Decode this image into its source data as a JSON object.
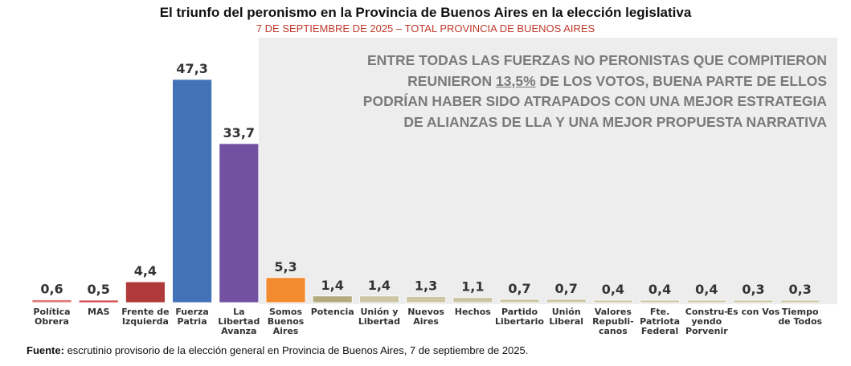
{
  "header": {
    "title": "El triunfo del peronismo en la Provincia de Buenos Aires en la elección legislativa",
    "subtitle": "7 DE SEPTIEMBRE DE 2025 – TOTAL PROVINCIA DE BUENOS AIRES"
  },
  "note": {
    "line1": "ENTRE TODAS LAS FUERZAS NO PERONISTAS QUE COMPITIERON",
    "line2_pre": "REUNIERON ",
    "line2_value": "13,5%",
    "line2_post": " DE LOS VOTOS, BUENA PARTE DE ELLOS",
    "line3": "PODRÍAN HABER SIDO ATRAPADOS CON UNA MEJOR ESTRATEGIA",
    "line4": "DE ALIANZAS DE LLA Y UNA MEJOR PROPUESTA NARRATIVA"
  },
  "source": {
    "label": "Fuente:",
    "text": " escrutinio provisorio de la elección general en Provincia de Buenos Aires, 7 de septiembre de 2025."
  },
  "chart_data": {
    "type": "bar",
    "title": "El triunfo del peronismo en la Provincia de Buenos Aires en la elección legislativa",
    "subtitle": "7 DE SEPTIEMBRE DE 2025 – TOTAL PROVINCIA DE BUENOS AIRES",
    "xlabel": "",
    "ylabel": "",
    "grid": false,
    "decimal_separator": ",",
    "categories": [
      [
        "Política",
        "Obrera"
      ],
      [
        "MAS"
      ],
      [
        "Frente de",
        "Izquierda"
      ],
      [
        "Fuerza",
        "Patria"
      ],
      [
        "La",
        "Libertad",
        "Avanza"
      ],
      [
        "Somos",
        "Buenos",
        "Aires"
      ],
      [
        "Potencia"
      ],
      [
        "Unión y",
        "Libertad"
      ],
      [
        "Nuevos",
        "Aires"
      ],
      [
        "Hechos"
      ],
      [
        "Partido",
        "Libertario"
      ],
      [
        "Unión",
        "Liberal"
      ],
      [
        "Valores",
        "Republi-",
        "canos"
      ],
      [
        "Fte.",
        "Patriota",
        "Federal"
      ],
      [
        "Constru-",
        "yendo",
        "Porvenir"
      ],
      [
        "Es con Vos"
      ],
      [
        "Tiempo",
        "de Todos"
      ]
    ],
    "values": [
      0.6,
      0.5,
      4.4,
      47.3,
      33.7,
      5.3,
      1.4,
      1.4,
      1.3,
      1.1,
      0.7,
      0.7,
      0.4,
      0.4,
      0.4,
      0.3,
      0.3
    ],
    "value_labels": [
      "0,6",
      "0,5",
      "4,4",
      "47,3",
      "33,7",
      "5,3",
      "1,4",
      "1,4",
      "1,3",
      "1,1",
      "0,7",
      "0,7",
      "0,4",
      "0,4",
      "0,4",
      "0,3",
      "0,3"
    ],
    "colors": [
      "#e07a7a",
      "#d64545",
      "#b03a3a",
      "#4472b8",
      "#7251a0",
      "#f28b30",
      "#b3ab7e",
      "#ccc6a4",
      "#ccc6a4",
      "#ccc6a4",
      "#ccc6a4",
      "#ccc6a4",
      "#ccc6a4",
      "#ccc6a4",
      "#ccc6a4",
      "#ccc6a4",
      "#ccc6a4"
    ],
    "ylim": [
      0,
      50
    ]
  }
}
